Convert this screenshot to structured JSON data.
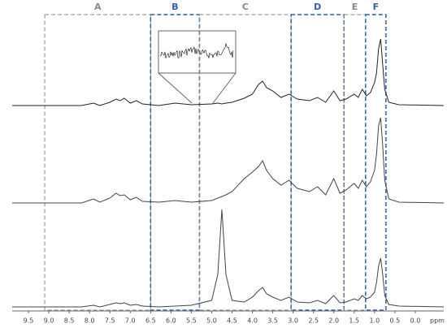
{
  "chart_data": {
    "type": "spectrum",
    "x_label": "ppm",
    "xlim": [
      9.9,
      -0.7
    ],
    "xticks": [
      9.5,
      {
        "value": 9,
        "label": "9.0"
      },
      8.5,
      {
        "value": 8,
        "label": "8.0"
      },
      7.5,
      {
        "value": 7,
        "label": "7.0"
      },
      6.5,
      {
        "value": 6,
        "label": "6.0"
      },
      5.5,
      {
        "value": 5,
        "label": "5.0"
      },
      4.5,
      {
        "value": 4,
        "label": "4.0"
      },
      3.5,
      {
        "value": 3,
        "label": "3.0"
      },
      2.5,
      {
        "value": 2,
        "label": "2.0"
      },
      1.5,
      {
        "value": 1,
        "label": "1.0"
      },
      0.5,
      {
        "value": 0,
        "label": "0.0"
      }
    ],
    "regions": [
      {
        "label": "A",
        "from": 9.1,
        "to": 6.5,
        "color": "#888888"
      },
      {
        "label": "B",
        "from": 6.5,
        "to": 5.3,
        "color": "#2e5fa8"
      },
      {
        "label": "C",
        "from": 5.3,
        "to": 3.05,
        "color": "#888888"
      },
      {
        "label": "D",
        "from": 3.05,
        "to": 1.75,
        "color": "#2e5fa8"
      },
      {
        "label": "E",
        "from": 1.75,
        "to": 1.22,
        "color": "#888888"
      },
      {
        "label": "F",
        "from": 1.22,
        "to": 0.72,
        "color": "#2e5fa8"
      }
    ],
    "x": [
      9.9,
      8.2,
      7.9,
      7.75,
      7.5,
      7.35,
      7.25,
      7.15,
      7.0,
      6.85,
      6.7,
      6.3,
      5.9,
      5.5,
      5.0,
      4.85,
      4.75,
      4.65,
      4.5,
      4.2,
      4.0,
      3.85,
      3.75,
      3.65,
      3.5,
      3.3,
      3.1,
      2.9,
      2.6,
      2.4,
      2.2,
      2.0,
      1.85,
      1.7,
      1.5,
      1.4,
      1.3,
      1.2,
      1.1,
      1.0,
      0.95,
      0.9,
      0.85,
      0.8,
      0.75,
      0.65,
      0.4,
      -0.7
    ],
    "series": [
      {
        "color": "#222222",
        "values": [
          0,
          0,
          3,
          0,
          4,
          8,
          6,
          9,
          3,
          6,
          2,
          0,
          3,
          1,
          2,
          3,
          2,
          3,
          4,
          9,
          14,
          26,
          30,
          22,
          18,
          10,
          14,
          8,
          6,
          10,
          4,
          18,
          6,
          8,
          14,
          10,
          20,
          12,
          16,
          28,
          40,
          70,
          82,
          50,
          20,
          4,
          1,
          0
        ]
      },
      {
        "color": "#444444",
        "values": [
          0,
          0,
          5,
          1,
          6,
          12,
          9,
          10,
          4,
          7,
          2,
          1,
          3,
          1,
          3,
          6,
          8,
          10,
          14,
          30,
          38,
          45,
          52,
          40,
          30,
          22,
          28,
          18,
          14,
          20,
          10,
          30,
          12,
          16,
          24,
          18,
          28,
          20,
          26,
          40,
          60,
          95,
          105,
          70,
          28,
          5,
          1,
          0
        ]
      },
      {
        "color": "#444444",
        "values": [
          0,
          0,
          2,
          0,
          3,
          5,
          4,
          5,
          2,
          3,
          1,
          0,
          1,
          2,
          8,
          40,
          120,
          40,
          8,
          6,
          12,
          20,
          24,
          16,
          12,
          8,
          12,
          6,
          5,
          8,
          4,
          14,
          5,
          6,
          10,
          8,
          14,
          10,
          12,
          18,
          30,
          50,
          60,
          40,
          14,
          3,
          1,
          0
        ]
      }
    ]
  }
}
